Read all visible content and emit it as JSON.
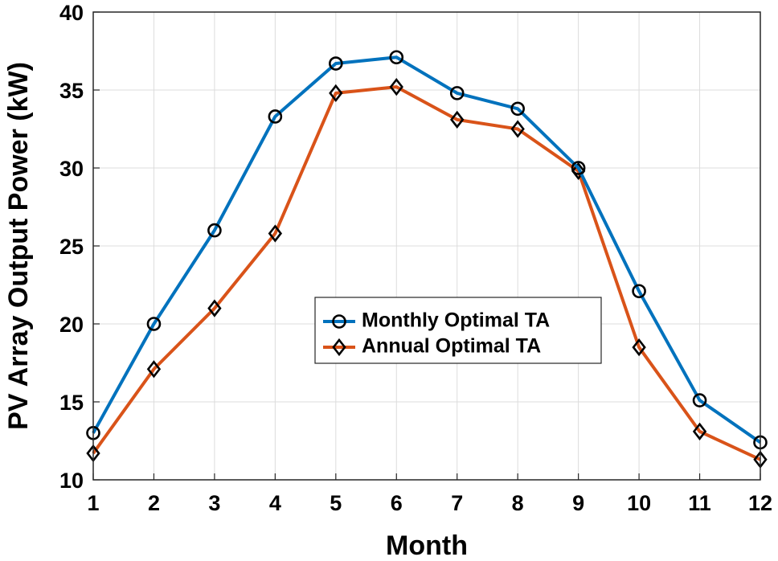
{
  "chart_data": {
    "type": "line",
    "title": "",
    "xlabel": "Month",
    "ylabel": "PV Array Output Power (kW)",
    "x": [
      1,
      2,
      3,
      4,
      5,
      6,
      7,
      8,
      9,
      10,
      11,
      12
    ],
    "xlim": [
      1,
      12
    ],
    "ylim": [
      10,
      40
    ],
    "xticks": [
      "1",
      "2",
      "3",
      "4",
      "5",
      "6",
      "7",
      "8",
      "9",
      "10",
      "11",
      "12"
    ],
    "yticks": [
      "10",
      "15",
      "20",
      "25",
      "30",
      "35",
      "40"
    ],
    "grid": true,
    "legend_position": "center-right",
    "series": [
      {
        "name": "Monthly Optimal TA",
        "marker": "circle",
        "color": "#0072BD",
        "values": [
          13.0,
          20.0,
          26.0,
          33.3,
          36.7,
          37.1,
          34.8,
          33.8,
          30.0,
          22.1,
          15.1,
          12.4
        ]
      },
      {
        "name": "Annual Optimal TA",
        "marker": "diamond",
        "color": "#D95319",
        "values": [
          11.7,
          17.1,
          21.0,
          25.8,
          34.8,
          35.2,
          33.1,
          32.5,
          29.8,
          18.5,
          13.1,
          11.3
        ]
      }
    ]
  }
}
